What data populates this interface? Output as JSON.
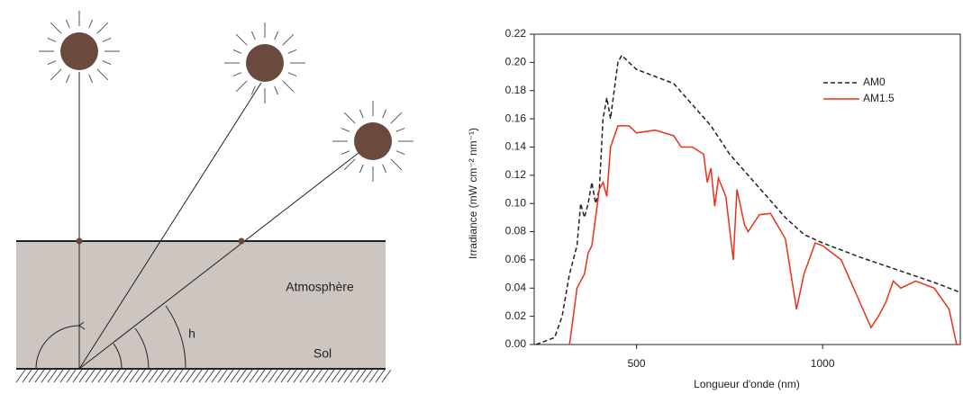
{
  "diagram": {
    "labels": {
      "atmosphere": "Atmosphère",
      "ground": "Sol",
      "angle": "h"
    }
  },
  "chart_data": {
    "type": "line",
    "x_label": "Longueur d'onde (nm)",
    "y_label": "Irradiance (mW cm⁻² nm⁻¹)",
    "xlim": [
      225,
      1370
    ],
    "xticks": [
      500,
      1000
    ],
    "ylim": [
      0,
      0.22
    ],
    "yticks": [
      {
        "value": 0,
        "label": "0.00"
      },
      0.02,
      0.04,
      0.06,
      0.08,
      {
        "value": 0.1,
        "label": "0.10"
      },
      0.12,
      0.14,
      0.16,
      0.18,
      {
        "value": 0.2,
        "label": "0.20"
      },
      0.22
    ],
    "legend": "upper right",
    "series": [
      {
        "name": "AM0",
        "color": "#222222",
        "dash": true,
        "x": [
          230,
          280,
          300,
          320,
          340,
          350,
          360,
          370,
          380,
          390,
          400,
          410,
          420,
          430,
          440,
          450,
          460,
          480,
          500,
          550,
          600,
          650,
          700,
          750,
          800,
          850,
          900,
          950,
          1000,
          1100,
          1200,
          1300,
          1370
        ],
        "values": [
          0,
          0.005,
          0.02,
          0.05,
          0.07,
          0.1,
          0.09,
          0.1,
          0.115,
          0.1,
          0.11,
          0.16,
          0.175,
          0.16,
          0.18,
          0.2,
          0.205,
          0.2,
          0.195,
          0.19,
          0.185,
          0.17,
          0.155,
          0.135,
          0.12,
          0.105,
          0.09,
          0.078,
          0.072,
          0.062,
          0.053,
          0.044,
          0.037
        ]
      },
      {
        "name": "AM1.5",
        "color": "#e8321e",
        "dash": false,
        "x": [
          320,
          330,
          340,
          360,
          370,
          380,
          400,
          410,
          420,
          430,
          450,
          480,
          500,
          550,
          600,
          620,
          650,
          680,
          690,
          700,
          710,
          720,
          740,
          760,
          770,
          790,
          800,
          830,
          860,
          900,
          930,
          950,
          980,
          1000,
          1050,
          1100,
          1130,
          1150,
          1170,
          1190,
          1210,
          1250,
          1300,
          1340,
          1360,
          1370
        ],
        "values": [
          0,
          0.02,
          0.04,
          0.05,
          0.065,
          0.07,
          0.11,
          0.115,
          0.105,
          0.14,
          0.155,
          0.155,
          0.15,
          0.152,
          0.148,
          0.14,
          0.14,
          0.135,
          0.115,
          0.125,
          0.098,
          0.118,
          0.105,
          0.06,
          0.11,
          0.085,
          0.08,
          0.092,
          0.093,
          0.075,
          0.025,
          0.05,
          0.072,
          0.07,
          0.06,
          0.03,
          0.012,
          0.02,
          0.03,
          0.045,
          0.04,
          0.045,
          0.04,
          0.025,
          0,
          0
        ]
      }
    ]
  }
}
